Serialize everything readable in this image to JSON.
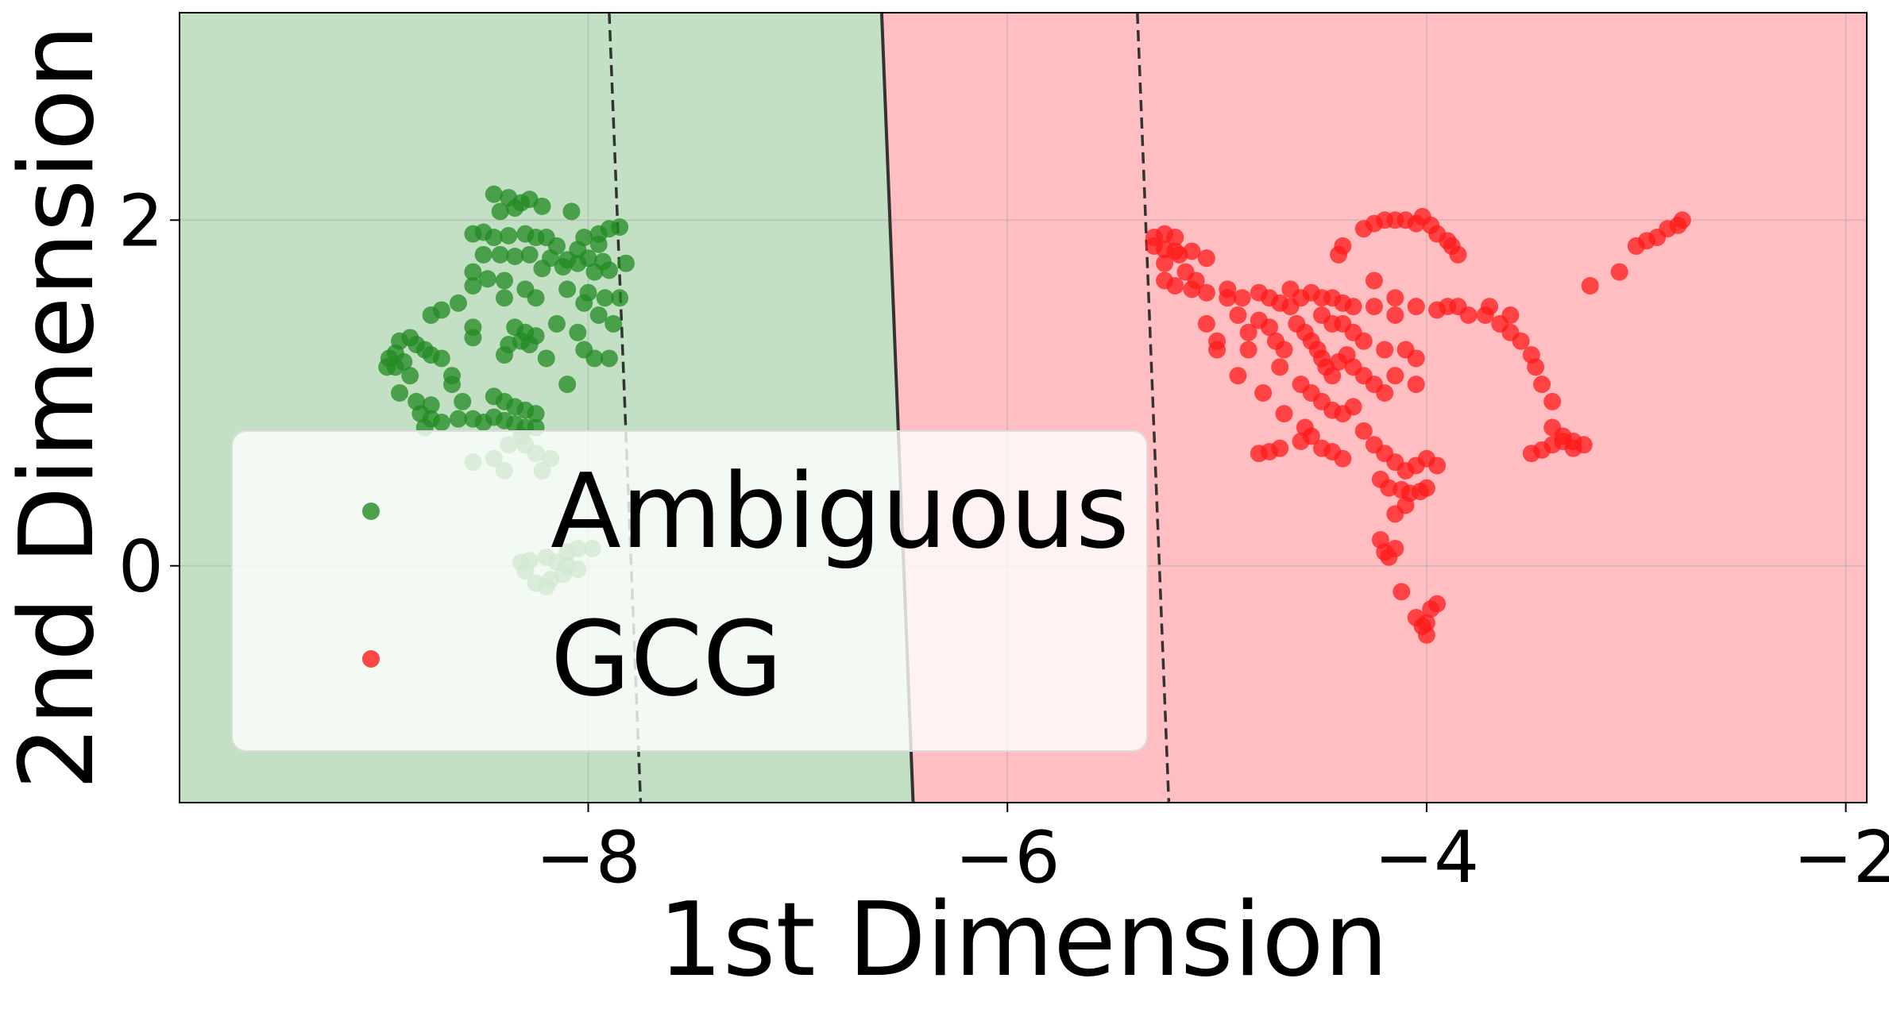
{
  "chart_data": {
    "type": "scatter",
    "title": "",
    "xlabel": "1st Dimension",
    "ylabel": "2nd Dimension",
    "xlim": [
      -9.95,
      -1.9
    ],
    "ylim": [
      -1.37,
      3.2
    ],
    "xticks": [
      -8,
      -6,
      -4,
      -2
    ],
    "xtick_labels": [
      "−8",
      "−6",
      "−4",
      "−2"
    ],
    "yticks": [
      0,
      2
    ],
    "ytick_labels": [
      "0",
      "2"
    ],
    "grid": true,
    "legend_position": "lower-left",
    "regions": [
      {
        "name": "Ambiguous",
        "color": "#c3e0c4"
      },
      {
        "name": "GCG",
        "color": "#ffbfc2"
      }
    ],
    "decision_boundary": {
      "x_at_top": -6.6,
      "x_at_bottom": -6.45,
      "style": "solid"
    },
    "margin_lines": [
      {
        "x_at_top": -7.9,
        "x_at_bottom": -7.75,
        "style": "dashed"
      },
      {
        "x_at_top": -5.38,
        "x_at_bottom": -5.23,
        "style": "dashed"
      }
    ],
    "series": [
      {
        "name": "Ambiguous",
        "color": "#228b22",
        "points": [
          [
            -8.45,
            2.15
          ],
          [
            -8.38,
            2.13
          ],
          [
            -8.32,
            2.1
          ],
          [
            -8.28,
            2.12
          ],
          [
            -8.42,
            2.05
          ],
          [
            -8.35,
            2.07
          ],
          [
            -8.22,
            2.08
          ],
          [
            -8.08,
            2.05
          ],
          [
            -8.55,
            1.92
          ],
          [
            -8.5,
            1.93
          ],
          [
            -8.45,
            1.9
          ],
          [
            -8.38,
            1.91
          ],
          [
            -8.3,
            1.92
          ],
          [
            -8.25,
            1.9
          ],
          [
            -8.2,
            1.9
          ],
          [
            -8.02,
            1.9
          ],
          [
            -7.95,
            1.92
          ],
          [
            -7.9,
            1.95
          ],
          [
            -7.85,
            1.96
          ],
          [
            -8.15,
            1.85
          ],
          [
            -8.05,
            1.83
          ],
          [
            -7.95,
            1.86
          ],
          [
            -8.5,
            1.8
          ],
          [
            -8.42,
            1.8
          ],
          [
            -8.35,
            1.79
          ],
          [
            -8.28,
            1.8
          ],
          [
            -8.18,
            1.78
          ],
          [
            -8.1,
            1.77
          ],
          [
            -8.0,
            1.78
          ],
          [
            -7.93,
            1.76
          ],
          [
            -7.82,
            1.75
          ],
          [
            -8.22,
            1.72
          ],
          [
            -8.12,
            1.73
          ],
          [
            -8.05,
            1.75
          ],
          [
            -7.97,
            1.7
          ],
          [
            -7.9,
            1.71
          ],
          [
            -8.55,
            1.7
          ],
          [
            -8.48,
            1.66
          ],
          [
            -8.4,
            1.65
          ],
          [
            -8.55,
            1.62
          ],
          [
            -8.3,
            1.6
          ],
          [
            -8.1,
            1.6
          ],
          [
            -8.0,
            1.58
          ],
          [
            -7.92,
            1.55
          ],
          [
            -7.85,
            1.55
          ],
          [
            -8.02,
            1.52
          ],
          [
            -8.25,
            1.55
          ],
          [
            -8.4,
            1.55
          ],
          [
            -8.62,
            1.52
          ],
          [
            -8.7,
            1.48
          ],
          [
            -8.75,
            1.45
          ],
          [
            -8.55,
            1.38
          ],
          [
            -8.35,
            1.38
          ],
          [
            -8.3,
            1.35
          ],
          [
            -8.25,
            1.33
          ],
          [
            -8.32,
            1.3
          ],
          [
            -8.55,
            1.32
          ],
          [
            -8.38,
            1.28
          ],
          [
            -8.28,
            1.28
          ],
          [
            -8.15,
            1.4
          ],
          [
            -8.05,
            1.35
          ],
          [
            -7.95,
            1.45
          ],
          [
            -7.88,
            1.4
          ],
          [
            -8.02,
            1.25
          ],
          [
            -7.97,
            1.2
          ],
          [
            -7.9,
            1.2
          ],
          [
            -8.85,
            1.32
          ],
          [
            -8.9,
            1.3
          ],
          [
            -8.82,
            1.28
          ],
          [
            -8.78,
            1.25
          ],
          [
            -8.92,
            1.23
          ],
          [
            -8.95,
            1.2
          ],
          [
            -8.88,
            1.18
          ],
          [
            -8.92,
            1.15
          ],
          [
            -8.96,
            1.15
          ],
          [
            -8.75,
            1.22
          ],
          [
            -8.7,
            1.2
          ],
          [
            -8.4,
            1.22
          ],
          [
            -8.2,
            1.2
          ],
          [
            -8.85,
            1.1
          ],
          [
            -8.65,
            1.1
          ],
          [
            -8.65,
            1.05
          ],
          [
            -8.1,
            1.05
          ],
          [
            -8.9,
            1.0
          ],
          [
            -8.82,
            0.95
          ],
          [
            -8.75,
            0.93
          ],
          [
            -8.6,
            0.95
          ],
          [
            -8.45,
            0.98
          ],
          [
            -8.4,
            0.95
          ],
          [
            -8.35,
            0.92
          ],
          [
            -8.3,
            0.9
          ],
          [
            -8.25,
            0.88
          ],
          [
            -8.8,
            0.88
          ],
          [
            -8.75,
            0.85
          ],
          [
            -8.7,
            0.83
          ],
          [
            -8.62,
            0.85
          ],
          [
            -8.55,
            0.85
          ],
          [
            -8.5,
            0.83
          ],
          [
            -8.45,
            0.86
          ],
          [
            -8.4,
            0.84
          ],
          [
            -8.35,
            0.82
          ],
          [
            -8.3,
            0.8
          ],
          [
            -8.25,
            0.8
          ],
          [
            -8.78,
            0.8
          ],
          [
            -8.32,
            0.75
          ],
          [
            -8.38,
            0.7
          ],
          [
            -8.3,
            0.7
          ],
          [
            -8.25,
            0.65
          ],
          [
            -8.18,
            0.62
          ],
          [
            -8.45,
            0.62
          ],
          [
            -8.55,
            0.6
          ],
          [
            -8.4,
            0.55
          ],
          [
            -8.22,
            0.55
          ],
          [
            -8.1,
            0.08
          ],
          [
            -8.05,
            0.1
          ],
          [
            -7.98,
            0.1
          ],
          [
            -8.2,
            0.05
          ],
          [
            -8.28,
            0.03
          ],
          [
            -8.32,
            0.02
          ],
          [
            -8.15,
            0.02
          ],
          [
            -8.1,
            0.0
          ],
          [
            -8.05,
            -0.02
          ],
          [
            -8.12,
            -0.05
          ],
          [
            -8.18,
            -0.08
          ],
          [
            -8.25,
            -0.1
          ],
          [
            -8.2,
            -0.12
          ],
          [
            -8.3,
            -0.03
          ]
        ]
      },
      {
        "name": "GCG",
        "color": "#ff1a1a",
        "points": [
          [
            -5.3,
            1.9
          ],
          [
            -5.25,
            1.92
          ],
          [
            -5.2,
            1.9
          ],
          [
            -5.3,
            1.85
          ],
          [
            -5.25,
            1.83
          ],
          [
            -5.18,
            1.8
          ],
          [
            -5.12,
            1.82
          ],
          [
            -5.05,
            1.78
          ],
          [
            -5.25,
            1.75
          ],
          [
            -5.15,
            1.7
          ],
          [
            -5.1,
            1.65
          ],
          [
            -5.25,
            1.65
          ],
          [
            -5.2,
            1.62
          ],
          [
            -5.12,
            1.6
          ],
          [
            -5.05,
            1.58
          ],
          [
            -4.95,
            1.55
          ],
          [
            -4.88,
            1.55
          ],
          [
            -4.8,
            1.58
          ],
          [
            -4.75,
            1.55
          ],
          [
            -4.7,
            1.52
          ],
          [
            -4.65,
            1.5
          ],
          [
            -4.6,
            1.55
          ],
          [
            -4.55,
            1.58
          ],
          [
            -4.5,
            1.55
          ],
          [
            -4.45,
            1.55
          ],
          [
            -4.4,
            1.52
          ],
          [
            -4.35,
            1.5
          ],
          [
            -4.25,
            1.5
          ],
          [
            -4.15,
            1.55
          ],
          [
            -4.05,
            1.5
          ],
          [
            -3.95,
            1.48
          ],
          [
            -3.85,
            1.5
          ],
          [
            -3.8,
            1.45
          ],
          [
            -3.72,
            1.45
          ],
          [
            -3.65,
            1.4
          ],
          [
            -3.6,
            1.35
          ],
          [
            -3.55,
            1.3
          ],
          [
            -3.5,
            1.22
          ],
          [
            -3.48,
            1.15
          ],
          [
            -3.45,
            1.05
          ],
          [
            -3.4,
            0.95
          ],
          [
            -5.0,
            1.3
          ],
          [
            -5.0,
            1.25
          ],
          [
            -4.85,
            1.35
          ],
          [
            -4.8,
            1.42
          ],
          [
            -4.75,
            1.38
          ],
          [
            -4.72,
            1.3
          ],
          [
            -4.68,
            1.25
          ],
          [
            -4.62,
            1.4
          ],
          [
            -4.58,
            1.35
          ],
          [
            -4.55,
            1.3
          ],
          [
            -4.52,
            1.25
          ],
          [
            -4.5,
            1.2
          ],
          [
            -4.48,
            1.15
          ],
          [
            -4.45,
            1.1
          ],
          [
            -4.42,
            1.18
          ],
          [
            -4.38,
            1.22
          ],
          [
            -4.35,
            1.15
          ],
          [
            -4.3,
            1.1
          ],
          [
            -4.25,
            1.05
          ],
          [
            -4.2,
            1.0
          ],
          [
            -4.15,
            1.1
          ],
          [
            -4.1,
            1.25
          ],
          [
            -4.05,
            1.2
          ],
          [
            -4.6,
            1.05
          ],
          [
            -4.55,
            1.0
          ],
          [
            -4.5,
            0.95
          ],
          [
            -4.45,
            0.9
          ],
          [
            -4.4,
            0.88
          ],
          [
            -4.35,
            0.92
          ],
          [
            -4.78,
            1.0
          ],
          [
            -4.68,
            0.88
          ],
          [
            -4.58,
            0.8
          ],
          [
            -4.55,
            0.75
          ],
          [
            -4.6,
            0.72
          ],
          [
            -4.5,
            0.68
          ],
          [
            -4.45,
            0.66
          ],
          [
            -4.4,
            0.62
          ],
          [
            -4.3,
            0.78
          ],
          [
            -4.25,
            0.7
          ],
          [
            -4.2,
            0.65
          ],
          [
            -4.15,
            0.6
          ],
          [
            -4.1,
            0.55
          ],
          [
            -4.05,
            0.58
          ],
          [
            -4.0,
            0.62
          ],
          [
            -3.95,
            0.58
          ],
          [
            -4.22,
            0.5
          ],
          [
            -4.18,
            0.45
          ],
          [
            -4.12,
            0.44
          ],
          [
            -4.08,
            0.42
          ],
          [
            -4.03,
            0.43
          ],
          [
            -4.0,
            0.45
          ],
          [
            -4.7,
            0.68
          ],
          [
            -4.75,
            0.66
          ],
          [
            -4.8,
            0.65
          ],
          [
            -4.22,
            0.15
          ],
          [
            -4.2,
            0.08
          ],
          [
            -4.18,
            0.05
          ],
          [
            -4.15,
            0.1
          ],
          [
            -4.12,
            -0.15
          ],
          [
            -4.05,
            -0.3
          ],
          [
            -4.02,
            -0.35
          ],
          [
            -4.0,
            -0.33
          ],
          [
            -3.98,
            -0.25
          ],
          [
            -4.0,
            -0.4
          ],
          [
            -3.95,
            -0.22
          ],
          [
            -4.3,
            1.95
          ],
          [
            -4.25,
            1.98
          ],
          [
            -4.2,
            2.0
          ],
          [
            -4.15,
            2.0
          ],
          [
            -4.1,
            2.0
          ],
          [
            -4.05,
            1.98
          ],
          [
            -4.02,
            2.02
          ],
          [
            -3.98,
            1.97
          ],
          [
            -3.95,
            1.92
          ],
          [
            -3.9,
            1.88
          ],
          [
            -3.88,
            1.85
          ],
          [
            -3.85,
            1.8
          ],
          [
            -4.4,
            1.85
          ],
          [
            -4.42,
            1.8
          ],
          [
            -3.5,
            0.65
          ],
          [
            -3.45,
            0.67
          ],
          [
            -3.4,
            0.7
          ],
          [
            -3.35,
            0.72
          ],
          [
            -3.3,
            0.72
          ],
          [
            -3.25,
            0.7
          ],
          [
            -3.3,
            0.68
          ],
          [
            -3.35,
            0.75
          ],
          [
            -3.4,
            0.8
          ],
          [
            -3.22,
            1.62
          ],
          [
            -3.08,
            1.7
          ],
          [
            -3.0,
            1.85
          ],
          [
            -2.95,
            1.88
          ],
          [
            -2.9,
            1.9
          ],
          [
            -2.85,
            1.95
          ],
          [
            -2.8,
            1.97
          ],
          [
            -2.78,
            2.0
          ],
          [
            -5.2,
            1.82
          ],
          [
            -4.95,
            1.6
          ],
          [
            -4.9,
            1.45
          ],
          [
            -4.85,
            1.25
          ],
          [
            -4.7,
            1.15
          ],
          [
            -4.4,
            1.4
          ],
          [
            -4.35,
            1.35
          ],
          [
            -4.3,
            1.3
          ],
          [
            -4.2,
            1.25
          ],
          [
            -4.05,
            1.05
          ],
          [
            -3.9,
            1.5
          ],
          [
            -3.7,
            1.5
          ],
          [
            -3.6,
            1.45
          ],
          [
            -5.05,
            1.4
          ],
          [
            -4.9,
            1.1
          ],
          [
            -4.65,
            1.6
          ],
          [
            -4.5,
            1.45
          ],
          [
            -4.45,
            1.4
          ],
          [
            -4.25,
            1.65
          ],
          [
            -4.15,
            1.45
          ],
          [
            -4.1,
            0.35
          ],
          [
            -4.15,
            0.3
          ]
        ]
      }
    ]
  }
}
